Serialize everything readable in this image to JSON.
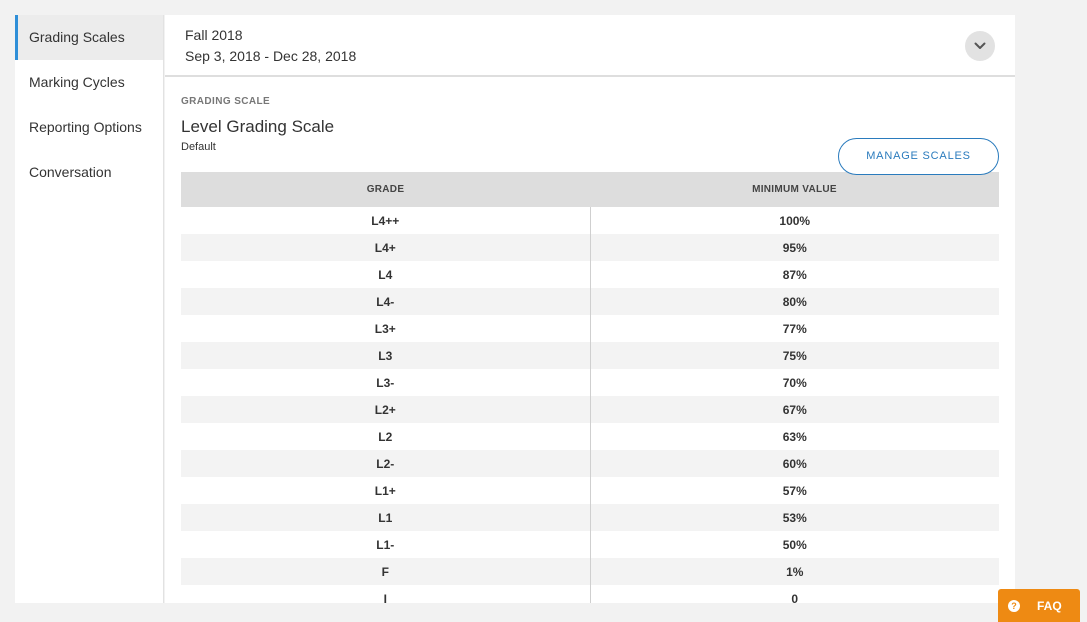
{
  "sidebar": {
    "items": [
      {
        "label": "Grading Scales",
        "active": true
      },
      {
        "label": "Marking Cycles",
        "active": false
      },
      {
        "label": "Reporting Options",
        "active": false
      },
      {
        "label": "Conversation",
        "active": false
      }
    ]
  },
  "term": {
    "name": "Fall 2018",
    "dates": "Sep 3, 2018 - Dec 28, 2018",
    "expand_icon": "chevron-down-icon"
  },
  "grading_scale": {
    "section_label": "GRADING SCALE",
    "title": "Level Grading Scale",
    "subtitle": "Default",
    "manage_button": "MANAGE SCALES",
    "columns": [
      "GRADE",
      "MINIMUM VALUE"
    ],
    "rows": [
      {
        "grade": "L4++",
        "min": "100%"
      },
      {
        "grade": "L4+",
        "min": "95%"
      },
      {
        "grade": "L4",
        "min": "87%"
      },
      {
        "grade": "L4-",
        "min": "80%"
      },
      {
        "grade": "L3+",
        "min": "77%"
      },
      {
        "grade": "L3",
        "min": "75%"
      },
      {
        "grade": "L3-",
        "min": "70%"
      },
      {
        "grade": "L2+",
        "min": "67%"
      },
      {
        "grade": "L2",
        "min": "63%"
      },
      {
        "grade": "L2-",
        "min": "60%"
      },
      {
        "grade": "L1+",
        "min": "57%"
      },
      {
        "grade": "L1",
        "min": "53%"
      },
      {
        "grade": "L1-",
        "min": "50%"
      },
      {
        "grade": "F",
        "min": "1%"
      },
      {
        "grade": "I",
        "min": "0"
      }
    ]
  },
  "faq": {
    "label": "FAQ",
    "icon": "question-icon",
    "icon_glyph": "?"
  },
  "colors": {
    "accent": "#2f8fd8",
    "manage_button": "#2a7bbd",
    "faq": "#ee8a13",
    "table_header": "#dddddd"
  }
}
